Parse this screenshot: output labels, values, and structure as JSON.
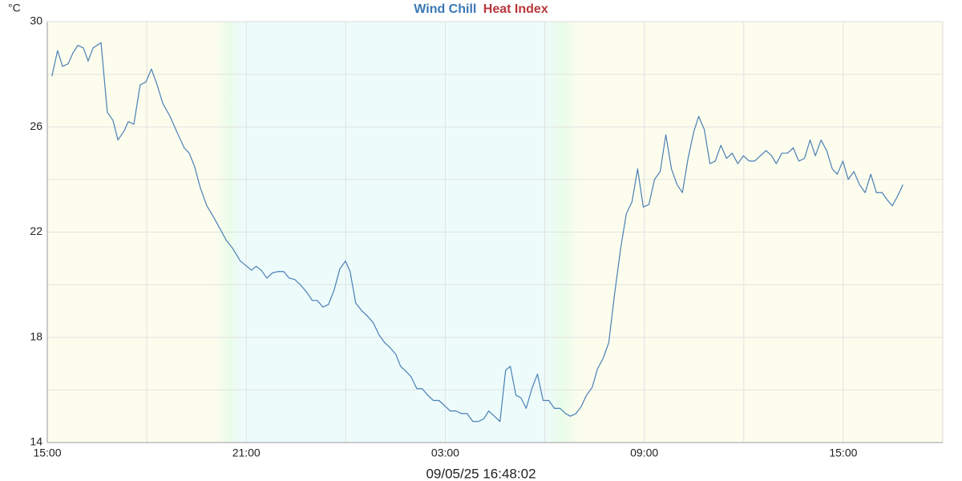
{
  "chart_data": {
    "type": "line",
    "legend": [
      {
        "text": "Wind Chill",
        "color": "#3a78b6"
      },
      {
        "text": "Heat Index",
        "color": "#b8383b"
      }
    ],
    "y_unit": "°C",
    "footer": "09/05/25 16:48:02",
    "xlim": [
      0,
      27
    ],
    "xticks": [
      {
        "value": 0,
        "label": "15:00"
      },
      {
        "value": 6,
        "label": "21:00"
      },
      {
        "value": 12,
        "label": "03:00"
      },
      {
        "value": 18,
        "label": "09:00"
      },
      {
        "value": 24,
        "label": "15:00"
      }
    ],
    "x_minor_ticks": [
      3,
      9,
      15,
      21
    ],
    "ylim": [
      14,
      30
    ],
    "yticks": [
      14,
      18,
      22,
      26,
      30
    ],
    "y_minor_ticks": [
      16,
      20,
      24,
      28
    ],
    "grid": true,
    "series": [
      {
        "color": "#4a7fb5",
        "x": [
          0.14,
          0.31,
          0.46,
          0.63,
          0.77,
          0.92,
          1.09,
          1.23,
          1.38,
          1.62,
          1.81,
          1.98,
          2.13,
          2.32,
          2.44,
          2.61,
          2.8,
          2.97,
          3.14,
          3.31,
          3.48,
          3.7,
          3.91,
          4.13,
          4.28,
          4.44,
          4.61,
          4.81,
          5.0,
          5.22,
          5.39,
          5.58,
          5.82,
          6.16,
          6.3,
          6.45,
          6.62,
          6.79,
          6.96,
          7.13,
          7.29,
          7.46,
          7.63,
          7.83,
          7.99,
          8.14,
          8.31,
          8.48,
          8.65,
          8.82,
          8.99,
          9.13,
          9.3,
          9.49,
          9.66,
          9.83,
          10.0,
          10.17,
          10.34,
          10.51,
          10.65,
          10.82,
          10.97,
          11.14,
          11.3,
          11.47,
          11.64,
          11.81,
          11.98,
          12.15,
          12.32,
          12.49,
          12.66,
          12.83,
          13.0,
          13.16,
          13.31,
          13.48,
          13.65,
          13.82,
          13.96,
          14.13,
          14.28,
          14.44,
          14.61,
          14.78,
          14.95,
          15.12,
          15.29,
          15.46,
          15.63,
          15.77,
          15.94,
          16.09,
          16.26,
          16.43,
          16.59,
          16.76,
          16.93,
          17.1,
          17.29,
          17.46,
          17.63,
          17.8,
          17.97,
          18.14,
          18.31,
          18.48,
          18.65,
          18.82,
          18.99,
          19.15,
          19.32,
          19.49,
          19.64,
          19.81,
          19.98,
          20.14,
          20.31,
          20.48,
          20.65,
          20.82,
          20.99,
          21.16,
          21.33,
          21.5,
          21.67,
          21.84,
          21.98,
          22.15,
          22.32,
          22.49,
          22.66,
          22.83,
          23.0,
          23.16,
          23.33,
          23.5,
          23.67,
          23.82,
          23.99,
          24.15,
          24.32,
          24.49,
          24.66,
          24.83,
          25.0,
          25.17,
          25.34,
          25.48,
          25.65,
          25.8
        ],
        "values": [
          27.93,
          28.9,
          28.3,
          28.4,
          28.8,
          29.1,
          29.0,
          28.5,
          29.0,
          29.2,
          26.55,
          26.25,
          25.5,
          25.85,
          26.2,
          26.1,
          27.6,
          27.7,
          28.2,
          27.6,
          26.9,
          26.4,
          25.8,
          25.2,
          25.0,
          24.5,
          23.7,
          23.0,
          22.6,
          22.1,
          21.7,
          21.4,
          20.9,
          20.55,
          20.7,
          20.55,
          20.25,
          20.45,
          20.5,
          20.5,
          20.25,
          20.2,
          20.0,
          19.7,
          19.4,
          19.4,
          19.15,
          19.25,
          19.8,
          20.6,
          20.9,
          20.5,
          19.3,
          19.0,
          18.8,
          18.55,
          18.1,
          17.8,
          17.6,
          17.35,
          16.9,
          16.7,
          16.5,
          16.05,
          16.05,
          15.8,
          15.6,
          15.6,
          15.4,
          15.2,
          15.2,
          15.1,
          15.1,
          14.8,
          14.8,
          14.9,
          15.2,
          15.0,
          14.8,
          16.75,
          16.9,
          15.8,
          15.7,
          15.3,
          16.05,
          16.6,
          15.6,
          15.6,
          15.3,
          15.3,
          15.1,
          15.0,
          15.1,
          15.35,
          15.8,
          16.1,
          16.8,
          17.2,
          17.8,
          19.6,
          21.4,
          22.7,
          23.15,
          24.4,
          22.95,
          23.05,
          24.0,
          24.3,
          25.7,
          24.4,
          23.8,
          23.5,
          24.8,
          25.8,
          26.4,
          25.9,
          24.6,
          24.7,
          25.3,
          24.8,
          25.0,
          24.6,
          24.9,
          24.7,
          24.7,
          24.9,
          25.1,
          24.9,
          24.6,
          25.0,
          25.0,
          25.2,
          24.7,
          24.8,
          25.5,
          24.9,
          25.5,
          25.1,
          24.4,
          24.2,
          24.7,
          24.0,
          24.3,
          23.8,
          23.5,
          24.2,
          23.5,
          23.5,
          23.2,
          23.0,
          23.4,
          23.8
        ]
      }
    ]
  }
}
